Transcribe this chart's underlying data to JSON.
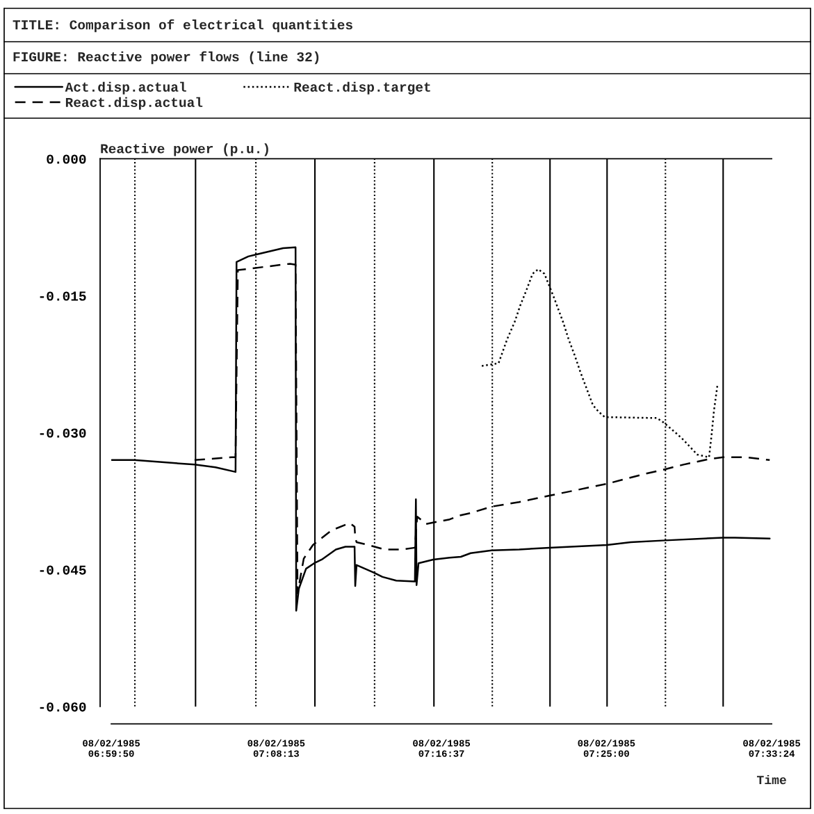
{
  "chart_data": {
    "type": "line",
    "title": "TITLE: Comparison of electrical quantities",
    "subtitle": "FIGURE: Reactive power flows (line 32)",
    "ylabel": "Reactive power (p.u.)",
    "xlabel": "Time",
    "xlim": [
      "1985-02-08T06:59:16",
      "1985-02-08T07:33:24"
    ],
    "xticks": [
      {
        "value": "1985-02-08T06:59:50",
        "label": "08/02/1985\n06:59:50"
      },
      {
        "value": "1985-02-08T07:08:13",
        "label": "08/02/1985\n07:08:13"
      },
      {
        "value": "1985-02-08T07:16:37",
        "label": "08/02/1985\n07:16:37"
      },
      {
        "value": "1985-02-08T07:25:00",
        "label": "08/02/1985\n07:25:00"
      },
      {
        "value": "1985-02-08T07:33:24",
        "label": "08/02/1985\n07:33:24"
      }
    ],
    "ylim": [
      -0.06,
      0.0
    ],
    "yticks": [
      {
        "value": -0.06,
        "label": "-0.060"
      },
      {
        "value": -0.045,
        "label": "-0.045"
      },
      {
        "value": -0.03,
        "label": "-0.030"
      },
      {
        "value": -0.015,
        "label": "-0.015"
      },
      {
        "value": 0.0,
        "label": "0.000"
      }
    ],
    "grid": false,
    "legend": "top",
    "marker": "none",
    "series": [
      {
        "name": "Act.disp.actual",
        "color": "#000000",
        "line_style": "solid",
        "x": [
          "1985-02-08T06:59:52",
          "1985-02-08T07:01:00",
          "1985-02-08T07:04:04",
          "1985-02-08T07:05:08",
          "1985-02-08T07:06:09",
          "1985-02-08T07:06:12",
          "1985-02-08T07:06:48",
          "1985-02-08T07:07:11",
          "1985-02-08T07:08:34",
          "1985-02-08T07:09:12",
          "1985-02-08T07:09:14",
          "1985-02-08T07:09:22",
          "1985-02-08T07:09:44",
          "1985-02-08T07:10:09",
          "1985-02-08T07:10:32",
          "1985-02-08T07:11:15",
          "1985-02-08T07:11:44",
          "1985-02-08T07:12:12",
          "1985-02-08T07:12:14",
          "1985-02-08T07:12:18",
          "1985-02-08T07:13:09",
          "1985-02-08T07:13:37",
          "1985-02-08T07:14:19",
          "1985-02-08T07:15:16",
          "1985-02-08T07:15:19",
          "1985-02-08T07:15:21",
          "1985-02-08T07:15:27",
          "1985-02-08T07:16:12",
          "1985-02-08T07:17:02",
          "1985-02-08T07:17:36",
          "1985-02-08T07:18:06",
          "1985-02-08T07:19:10",
          "1985-02-08T07:20:34",
          "1985-02-08T07:22:06",
          "1985-02-08T07:25:02",
          "1985-02-08T07:26:14",
          "1985-02-08T07:28:00",
          "1985-02-08T07:30:56",
          "1985-02-08T07:31:32",
          "1985-02-08T07:33:18"
        ],
        "values": [
          -0.033,
          -0.033,
          -0.0335,
          -0.0338,
          -0.0343,
          -0.0113,
          -0.0107,
          -0.0105,
          -0.0098,
          -0.0097,
          -0.0495,
          -0.0471,
          -0.0449,
          -0.0443,
          -0.0439,
          -0.0428,
          -0.0425,
          -0.0425,
          -0.0468,
          -0.0445,
          -0.0453,
          -0.0458,
          -0.0462,
          -0.0463,
          -0.0373,
          -0.0467,
          -0.0443,
          -0.0439,
          -0.0437,
          -0.0436,
          -0.0432,
          -0.0429,
          -0.0428,
          -0.0426,
          -0.0423,
          -0.042,
          -0.0418,
          -0.0415,
          -0.0415,
          -0.0416
        ]
      },
      {
        "name": "React.disp.target",
        "color": "#000000",
        "line_style": "dotted",
        "x": [
          "1985-02-08T07:18:40",
          "1985-02-08T07:19:31",
          "1985-02-08T07:19:58",
          "1985-02-08T07:20:20",
          "1985-02-08T07:20:37",
          "1985-02-08T07:20:56",
          "1985-02-08T07:21:15",
          "1985-02-08T07:21:32",
          "1985-02-08T07:21:51",
          "1985-02-08T07:22:01",
          "1985-02-08T07:22:20",
          "1985-02-08T07:22:48",
          "1985-02-08T07:23:05",
          "1985-02-08T07:23:24",
          "1985-02-08T07:23:41",
          "1985-02-08T07:24:00",
          "1985-02-08T07:24:19",
          "1985-02-08T07:24:36",
          "1985-02-08T07:24:55",
          "1985-02-08T07:27:34",
          "1985-02-08T07:27:55",
          "1985-02-08T07:28:34",
          "1985-02-08T07:28:55",
          "1985-02-08T07:29:37",
          "1985-02-08T07:30:13",
          "1985-02-08T07:30:20",
          "1985-02-08T07:30:28",
          "1985-02-08T07:30:39"
        ],
        "values": [
          -0.0227,
          -0.0224,
          -0.0197,
          -0.0179,
          -0.0161,
          -0.0144,
          -0.0126,
          -0.0121,
          -0.0126,
          -0.0135,
          -0.0152,
          -0.0179,
          -0.0198,
          -0.0216,
          -0.0234,
          -0.0252,
          -0.027,
          -0.0277,
          -0.0283,
          -0.0284,
          -0.0289,
          -0.0301,
          -0.0308,
          -0.0324,
          -0.0327,
          -0.0305,
          -0.0276,
          -0.0247
        ]
      },
      {
        "name": "React.disp.actual",
        "color": "#000000",
        "line_style": "dashed",
        "x": [
          "1985-02-08T07:04:04",
          "1985-02-08T07:05:57",
          "1985-02-08T07:06:09",
          "1985-02-08T07:06:16",
          "1985-02-08T07:08:55",
          "1985-02-08T07:09:12",
          "1985-02-08T07:09:18",
          "1985-02-08T07:09:37",
          "1985-02-08T07:10:05",
          "1985-02-08T07:11:02",
          "1985-02-08T07:11:57",
          "1985-02-08T07:12:12",
          "1985-02-08T07:12:14",
          "1985-02-08T07:12:18",
          "1985-02-08T07:12:54",
          "1985-02-08T07:13:43",
          "1985-02-08T07:14:34",
          "1985-02-08T07:15:16",
          "1985-02-08T07:15:23",
          "1985-02-08T07:15:50",
          "1985-02-08T07:17:02",
          "1985-02-08T07:17:30",
          "1985-02-08T07:18:06",
          "1985-02-08T07:19:10",
          "1985-02-08T07:20:34",
          "1985-02-08T07:22:06",
          "1985-02-08T07:25:02",
          "1985-02-08T07:26:48",
          "1985-02-08T07:28:00",
          "1985-02-08T07:28:55",
          "1985-02-08T07:30:13",
          "1985-02-08T07:30:56",
          "1985-02-08T07:32:06",
          "1985-02-08T07:33:18"
        ],
        "values": [
          -0.033,
          -0.0327,
          -0.0327,
          -0.0122,
          -0.0115,
          -0.0116,
          -0.0476,
          -0.0438,
          -0.0423,
          -0.0407,
          -0.0399,
          -0.0403,
          -0.0415,
          -0.042,
          -0.0423,
          -0.0428,
          -0.0428,
          -0.0426,
          -0.0392,
          -0.04,
          -0.0395,
          -0.0391,
          -0.0388,
          -0.0381,
          -0.0376,
          -0.0369,
          -0.0356,
          -0.0346,
          -0.034,
          -0.0335,
          -0.0329,
          -0.0327,
          -0.0327,
          -0.033
        ]
      }
    ],
    "ref_lines": [
      {
        "axis": "x",
        "value": "1985-02-08T07:01:02",
        "line_style": "dotted",
        "color": "#000000"
      },
      {
        "axis": "x",
        "value": "1985-02-08T07:04:07",
        "line_style": "solid",
        "color": "#000000"
      },
      {
        "axis": "x",
        "value": "1985-02-08T07:07:11",
        "line_style": "dotted",
        "color": "#000000"
      },
      {
        "axis": "x",
        "value": "1985-02-08T07:10:11",
        "line_style": "solid",
        "color": "#000000"
      },
      {
        "axis": "x",
        "value": "1985-02-08T07:13:13",
        "line_style": "dotted",
        "color": "#000000"
      },
      {
        "axis": "x",
        "value": "1985-02-08T07:16:14",
        "line_style": "solid",
        "color": "#000000"
      },
      {
        "axis": "x",
        "value": "1985-02-08T07:19:12",
        "line_style": "dotted",
        "color": "#000000"
      },
      {
        "axis": "x",
        "value": "1985-02-08T07:22:08",
        "line_style": "solid",
        "color": "#000000"
      },
      {
        "axis": "x",
        "value": "1985-02-08T07:25:02",
        "line_style": "solid",
        "color": "#000000"
      },
      {
        "axis": "x",
        "value": "1985-02-08T07:28:00",
        "line_style": "dotted",
        "color": "#000000"
      },
      {
        "axis": "x",
        "value": "1985-02-08T07:30:56",
        "line_style": "solid",
        "color": "#000000"
      }
    ]
  }
}
